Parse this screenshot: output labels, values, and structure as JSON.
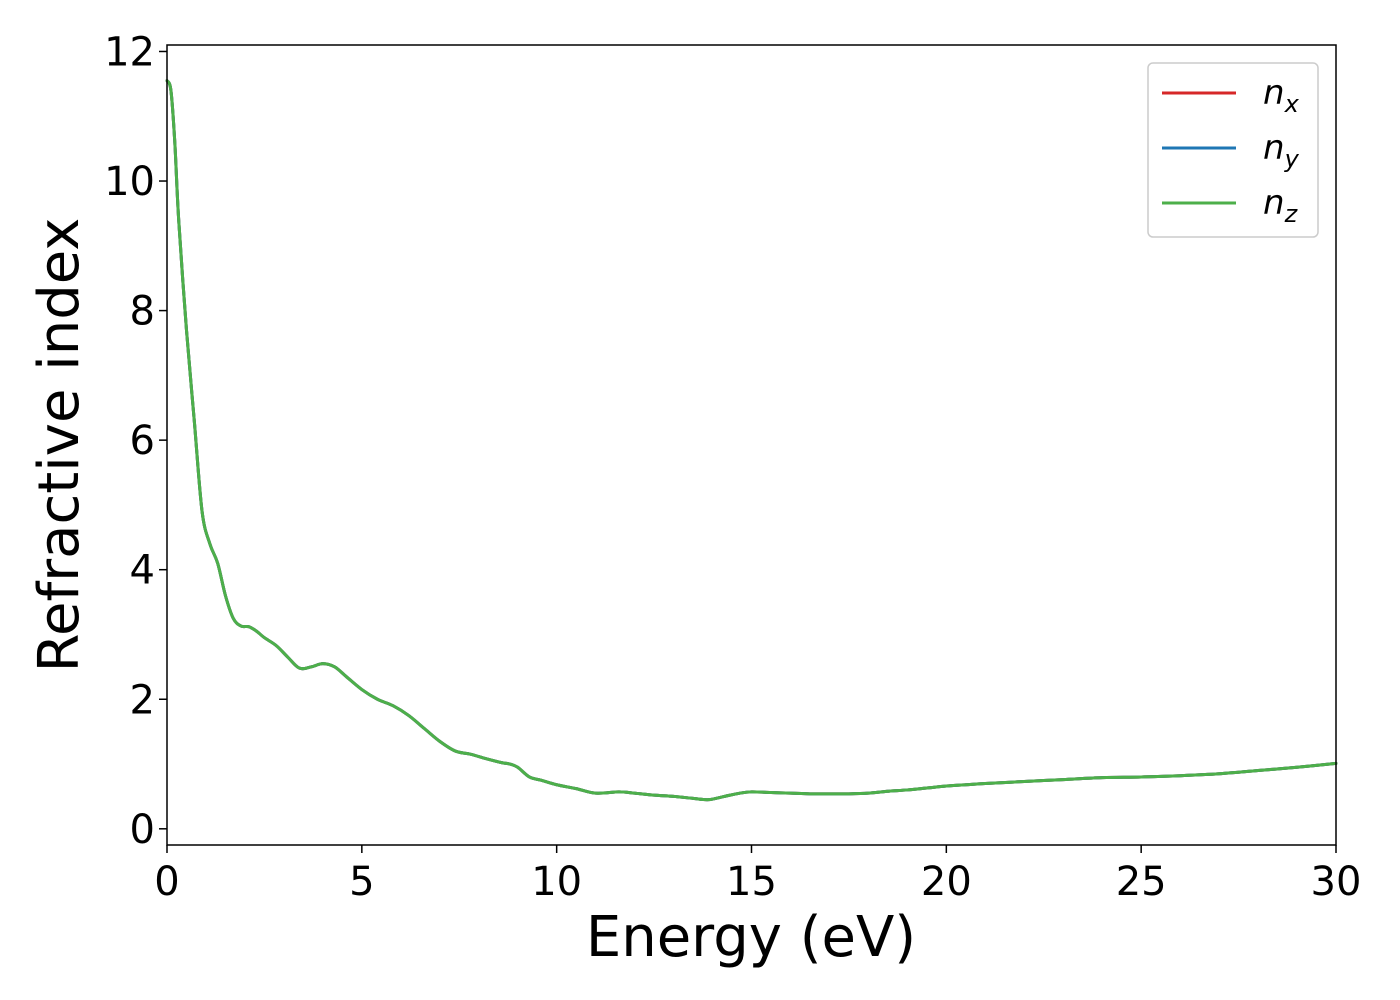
{
  "chart_data": {
    "type": "line",
    "xlabel": "Energy (eV)",
    "ylabel": "Refractive index",
    "xlim": [
      0,
      30
    ],
    "ylim": [
      -0.25,
      12.1
    ],
    "xticks": [
      0,
      5,
      10,
      15,
      20,
      25,
      30
    ],
    "yticks": [
      0,
      2,
      4,
      6,
      8,
      10,
      12
    ],
    "grid": false,
    "legend_position": "top-right",
    "x": [
      0,
      0.1,
      0.2,
      0.3,
      0.5,
      0.7,
      0.9,
      1.1,
      1.3,
      1.5,
      1.7,
      1.9,
      2.1,
      2.3,
      2.5,
      2.8,
      3.1,
      3.4,
      3.7,
      4.0,
      4.3,
      4.6,
      5.0,
      5.4,
      5.8,
      6.2,
      6.6,
      7.0,
      7.4,
      7.8,
      8.2,
      8.6,
      8.8,
      9.0,
      9.3,
      9.6,
      10.0,
      10.5,
      11.0,
      11.6,
      12.0,
      12.5,
      13.0,
      13.5,
      13.9,
      14.3,
      14.7,
      15.0,
      15.5,
      16.0,
      16.5,
      17.0,
      17.5,
      18.0,
      18.5,
      19.0,
      19.5,
      20.0,
      20.5,
      21.0,
      22.0,
      23.0,
      24.0,
      25.0,
      26.0,
      27.0,
      28.0,
      29.0,
      30.0
    ],
    "series": [
      {
        "name": "n_x",
        "color": "#d62728",
        "values": [
          11.55,
          11.4,
          10.6,
          9.4,
          7.7,
          6.3,
          4.9,
          4.4,
          4.1,
          3.6,
          3.25,
          3.13,
          3.12,
          3.05,
          2.95,
          2.83,
          2.65,
          2.48,
          2.5,
          2.55,
          2.5,
          2.35,
          2.15,
          2.0,
          1.9,
          1.75,
          1.55,
          1.35,
          1.2,
          1.15,
          1.08,
          1.02,
          1.0,
          0.95,
          0.8,
          0.75,
          0.68,
          0.62,
          0.55,
          0.57,
          0.55,
          0.52,
          0.5,
          0.47,
          0.45,
          0.5,
          0.55,
          0.57,
          0.56,
          0.55,
          0.54,
          0.54,
          0.54,
          0.55,
          0.58,
          0.6,
          0.63,
          0.66,
          0.68,
          0.7,
          0.73,
          0.76,
          0.79,
          0.8,
          0.82,
          0.85,
          0.9,
          0.95,
          1.01
        ]
      },
      {
        "name": "n_y",
        "color": "#1f77b4",
        "values": [
          11.55,
          11.4,
          10.6,
          9.4,
          7.7,
          6.3,
          4.9,
          4.4,
          4.1,
          3.6,
          3.25,
          3.13,
          3.12,
          3.05,
          2.95,
          2.83,
          2.65,
          2.48,
          2.5,
          2.55,
          2.5,
          2.35,
          2.15,
          2.0,
          1.9,
          1.75,
          1.55,
          1.35,
          1.2,
          1.15,
          1.08,
          1.02,
          1.0,
          0.95,
          0.8,
          0.75,
          0.68,
          0.62,
          0.55,
          0.57,
          0.55,
          0.52,
          0.5,
          0.47,
          0.45,
          0.5,
          0.55,
          0.57,
          0.56,
          0.55,
          0.54,
          0.54,
          0.54,
          0.55,
          0.58,
          0.6,
          0.63,
          0.66,
          0.68,
          0.7,
          0.73,
          0.76,
          0.79,
          0.8,
          0.82,
          0.85,
          0.9,
          0.95,
          1.01
        ]
      },
      {
        "name": "n_z",
        "color": "#4daf4a",
        "values": [
          11.55,
          11.4,
          10.6,
          9.4,
          7.7,
          6.3,
          4.9,
          4.4,
          4.1,
          3.6,
          3.25,
          3.13,
          3.12,
          3.05,
          2.95,
          2.83,
          2.65,
          2.48,
          2.5,
          2.55,
          2.5,
          2.35,
          2.15,
          2.0,
          1.9,
          1.75,
          1.55,
          1.35,
          1.2,
          1.15,
          1.08,
          1.02,
          1.0,
          0.95,
          0.8,
          0.75,
          0.68,
          0.62,
          0.55,
          0.57,
          0.55,
          0.52,
          0.5,
          0.47,
          0.45,
          0.5,
          0.55,
          0.57,
          0.56,
          0.55,
          0.54,
          0.54,
          0.54,
          0.55,
          0.58,
          0.6,
          0.63,
          0.66,
          0.68,
          0.7,
          0.73,
          0.76,
          0.79,
          0.8,
          0.82,
          0.85,
          0.9,
          0.95,
          1.01
        ]
      }
    ],
    "legend": [
      {
        "base": "n",
        "sub": "x",
        "color": "#d62728"
      },
      {
        "base": "n",
        "sub": "y",
        "color": "#1f77b4"
      },
      {
        "base": "n",
        "sub": "z",
        "color": "#4daf4a"
      }
    ]
  }
}
